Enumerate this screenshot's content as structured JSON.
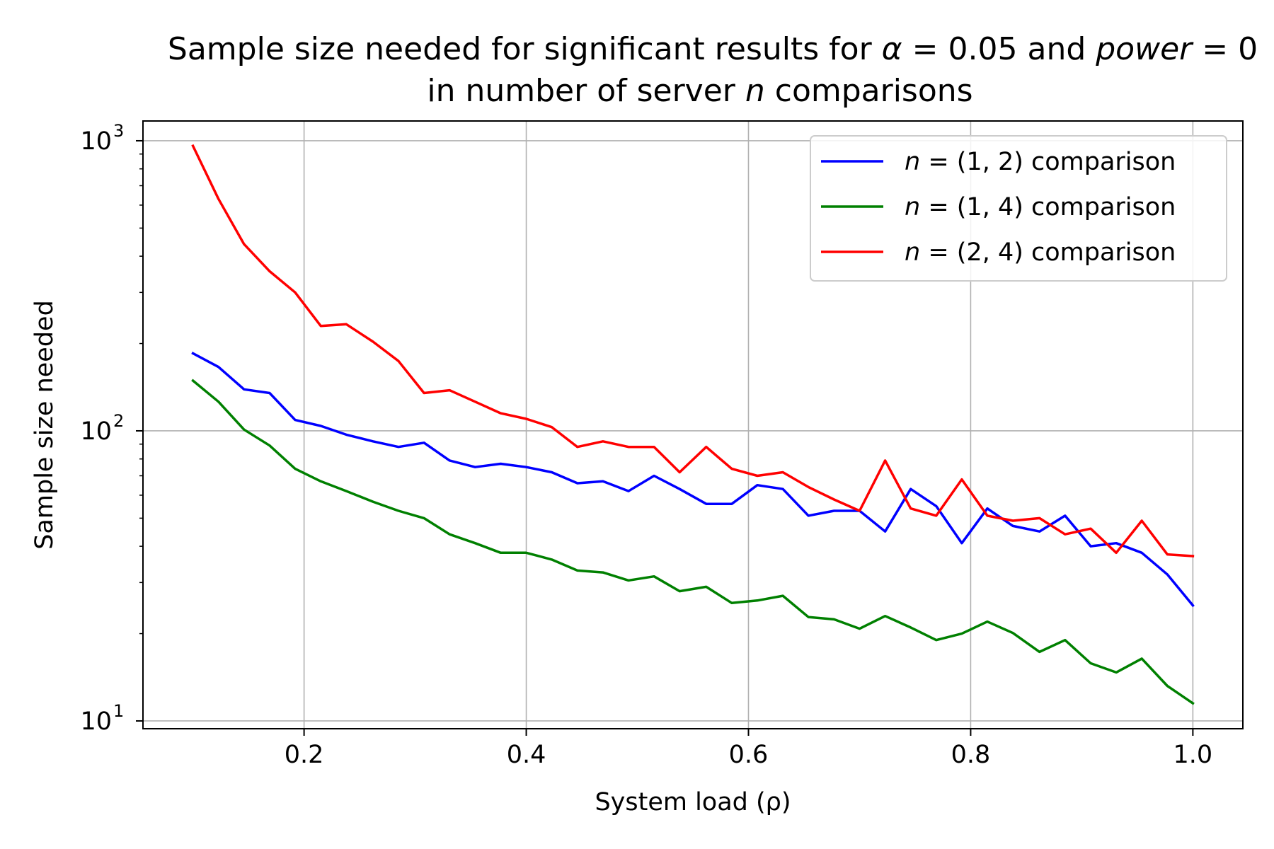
{
  "chart_data": {
    "type": "line",
    "title_parts": [
      {
        "text": "Sample size needed for significant results for ",
        "italic": false
      },
      {
        "text": "α",
        "italic": true
      },
      {
        "text": " = 0.05 and ",
        "italic": false
      },
      {
        "text": "power",
        "italic": true
      },
      {
        "text": " = 0",
        "italic": false
      }
    ],
    "subtitle_parts": [
      {
        "text": "in number of server ",
        "italic": false
      },
      {
        "text": "n",
        "italic": true
      },
      {
        "text": " comparisons",
        "italic": false
      }
    ],
    "xlabel": "System load (ρ)",
    "ylabel": "Sample size needed",
    "xscale": "linear",
    "yscale": "log",
    "xlim": [
      0.055,
      1.045
    ],
    "ylim": [
      9.4,
      1170
    ],
    "xticks": [
      0.2,
      0.4,
      0.6,
      0.8,
      1.0
    ],
    "xtick_labels": [
      "0.2",
      "0.4",
      "0.6",
      "0.8",
      "1.0"
    ],
    "yticks": [
      10,
      100,
      1000
    ],
    "ytick_labels": [
      {
        "base": "10",
        "exp": "1"
      },
      {
        "base": "10",
        "exp": "2"
      },
      {
        "base": "10",
        "exp": "3"
      }
    ],
    "grid": true,
    "legend_position": "upper right",
    "x": [
      0.1,
      0.123,
      0.146,
      0.169,
      0.192,
      0.215,
      0.238,
      0.262,
      0.285,
      0.308,
      0.331,
      0.354,
      0.377,
      0.4,
      0.423,
      0.446,
      0.469,
      0.492,
      0.515,
      0.538,
      0.562,
      0.585,
      0.608,
      0.631,
      0.654,
      0.677,
      0.7,
      0.723,
      0.746,
      0.769,
      0.792,
      0.815,
      0.838,
      0.862,
      0.885,
      0.908,
      0.931,
      0.954,
      0.977,
      1.0
    ],
    "series": [
      {
        "name_parts": [
          {
            "text": "n",
            "italic": true
          },
          {
            "text": " = (1, 2) comparison",
            "italic": false
          }
        ],
        "color": "#0000ff",
        "values": [
          185,
          166,
          139,
          135,
          109,
          104,
          97,
          92,
          88,
          91,
          79,
          75,
          77,
          75,
          72,
          66,
          67,
          62,
          70,
          63,
          56,
          56,
          65,
          63,
          51,
          53,
          53,
          45,
          63,
          55,
          41,
          54,
          47,
          45,
          51,
          40,
          41,
          38,
          32,
          25
        ]
      },
      {
        "name_parts": [
          {
            "text": "n",
            "italic": true
          },
          {
            "text": " = (1, 4) comparison",
            "italic": false
          }
        ],
        "color": "#008000",
        "values": [
          149,
          126,
          101,
          89,
          74,
          67,
          62,
          57,
          53,
          50,
          44,
          41,
          38,
          38,
          36,
          33,
          32.5,
          30.5,
          31.5,
          28,
          29,
          25.5,
          26,
          27,
          22.8,
          22.4,
          20.8,
          23,
          21,
          19,
          20,
          22,
          20.1,
          17.3,
          19,
          15.8,
          14.7,
          16.4,
          13.2,
          11.5
        ]
      },
      {
        "name_parts": [
          {
            "text": "n",
            "italic": true
          },
          {
            "text": " = (2, 4) comparison",
            "italic": false
          }
        ],
        "color": "#ff0000",
        "values": [
          960,
          630,
          440,
          355,
          300,
          230,
          233,
          203,
          174,
          135,
          138,
          126,
          115,
          110,
          103,
          88,
          92,
          88,
          88,
          72,
          88,
          74,
          70,
          72,
          64,
          58,
          53,
          79,
          54,
          51,
          68,
          51,
          49,
          50,
          44,
          46,
          38,
          49,
          37.5,
          37
        ]
      }
    ]
  }
}
